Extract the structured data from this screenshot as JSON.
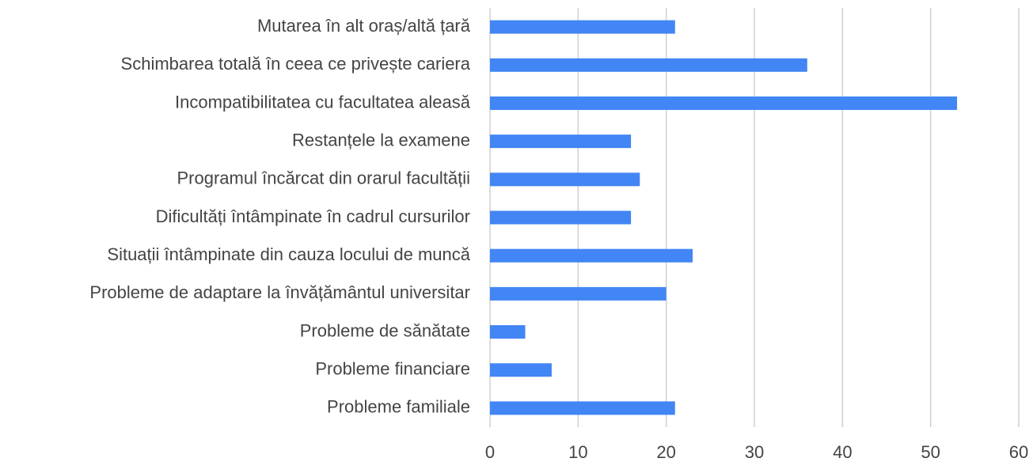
{
  "chart_data": {
    "type": "bar",
    "orientation": "horizontal",
    "categories": [
      "Mutarea în alt oraș/altă țară",
      "Schimbarea totală în ceea ce privește cariera",
      "Incompatibilitatea cu facultatea aleasă",
      "Restanțele la examene",
      "Programul încărcat din orarul facultății",
      "Dificultăți întâmpinate în cadrul cursurilor",
      "Situații întâmpinate din cauza locului de muncă",
      "Probleme de adaptare la învățământul universitar",
      "Probleme de sănătate",
      "Probleme financiare",
      "Probleme familiale"
    ],
    "values": [
      21,
      36,
      53,
      16,
      17,
      16,
      23,
      20,
      4,
      7,
      21
    ],
    "color": "#4285f4",
    "xlim": [
      0,
      60
    ],
    "xticks": [
      0,
      10,
      20,
      30,
      40,
      50,
      60
    ],
    "grid": true
  }
}
